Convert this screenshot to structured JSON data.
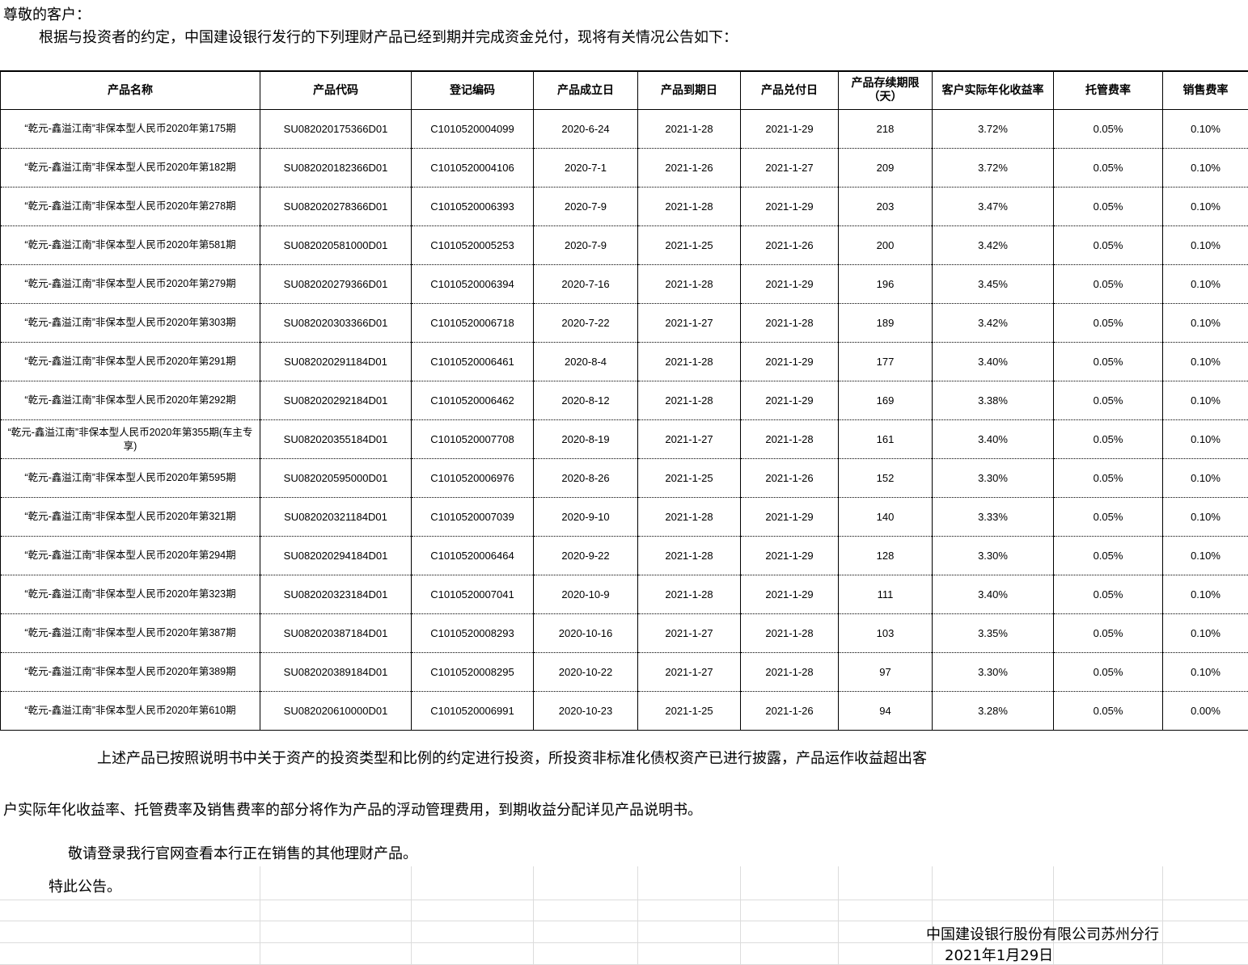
{
  "greeting": "尊敬的客户：",
  "intro": "根据与投资者的约定，中国建设银行发行的下列理财产品已经到期并完成资金兑付，现将有关情况公告如下：",
  "table": {
    "headers": [
      "产品名称",
      "产品代码",
      "登记编码",
      "产品成立日",
      "产品到期日",
      "产品兑付日",
      "产品存续期限（天）",
      "客户实际年化收益率",
      "托管费率",
      "销售费率"
    ],
    "rows": [
      [
        "“乾元-鑫溢江南”非保本型人民币2020年第175期",
        "SU082020175366D01",
        "C1010520004099",
        "2020-6-24",
        "2021-1-28",
        "2021-1-29",
        "218",
        "3.72%",
        "0.05%",
        "0.10%"
      ],
      [
        "“乾元-鑫溢江南”非保本型人民币2020年第182期",
        "SU082020182366D01",
        "C1010520004106",
        "2020-7-1",
        "2021-1-26",
        "2021-1-27",
        "209",
        "3.72%",
        "0.05%",
        "0.10%"
      ],
      [
        "“乾元-鑫溢江南”非保本型人民币2020年第278期",
        "SU082020278366D01",
        "C1010520006393",
        "2020-7-9",
        "2021-1-28",
        "2021-1-29",
        "203",
        "3.47%",
        "0.05%",
        "0.10%"
      ],
      [
        "“乾元-鑫溢江南”非保本型人民币2020年第581期",
        "SU082020581000D01",
        "C1010520005253",
        "2020-7-9",
        "2021-1-25",
        "2021-1-26",
        "200",
        "3.42%",
        "0.05%",
        "0.10%"
      ],
      [
        "“乾元-鑫溢江南”非保本型人民币2020年第279期",
        "SU082020279366D01",
        "C1010520006394",
        "2020-7-16",
        "2021-1-28",
        "2021-1-29",
        "196",
        "3.45%",
        "0.05%",
        "0.10%"
      ],
      [
        "“乾元-鑫溢江南”非保本型人民币2020年第303期",
        "SU082020303366D01",
        "C1010520006718",
        "2020-7-22",
        "2021-1-27",
        "2021-1-28",
        "189",
        "3.42%",
        "0.05%",
        "0.10%"
      ],
      [
        "“乾元-鑫溢江南”非保本型人民币2020年第291期",
        "SU082020291184D01",
        "C1010520006461",
        "2020-8-4",
        "2021-1-28",
        "2021-1-29",
        "177",
        "3.40%",
        "0.05%",
        "0.10%"
      ],
      [
        "“乾元-鑫溢江南”非保本型人民币2020年第292期",
        "SU082020292184D01",
        "C1010520006462",
        "2020-8-12",
        "2021-1-28",
        "2021-1-29",
        "169",
        "3.38%",
        "0.05%",
        "0.10%"
      ],
      [
        "“乾元-鑫溢江南”非保本型人民币2020年第355期(车主专享)",
        "SU082020355184D01",
        "C1010520007708",
        "2020-8-19",
        "2021-1-27",
        "2021-1-28",
        "161",
        "3.40%",
        "0.05%",
        "0.10%"
      ],
      [
        "“乾元-鑫溢江南”非保本型人民币2020年第595期",
        "SU082020595000D01",
        "C1010520006976",
        "2020-8-26",
        "2021-1-25",
        "2021-1-26",
        "152",
        "3.30%",
        "0.05%",
        "0.10%"
      ],
      [
        "“乾元-鑫溢江南”非保本型人民币2020年第321期",
        "SU082020321184D01",
        "C1010520007039",
        "2020-9-10",
        "2021-1-28",
        "2021-1-29",
        "140",
        "3.33%",
        "0.05%",
        "0.10%"
      ],
      [
        "“乾元-鑫溢江南”非保本型人民币2020年第294期",
        "SU082020294184D01",
        "C1010520006464",
        "2020-9-22",
        "2021-1-28",
        "2021-1-29",
        "128",
        "3.30%",
        "0.05%",
        "0.10%"
      ],
      [
        "“乾元-鑫溢江南”非保本型人民币2020年第323期",
        "SU082020323184D01",
        "C1010520007041",
        "2020-10-9",
        "2021-1-28",
        "2021-1-29",
        "111",
        "3.40%",
        "0.05%",
        "0.10%"
      ],
      [
        "“乾元-鑫溢江南”非保本型人民币2020年第387期",
        "SU082020387184D01",
        "C1010520008293",
        "2020-10-16",
        "2021-1-27",
        "2021-1-28",
        "103",
        "3.35%",
        "0.05%",
        "0.10%"
      ],
      [
        "“乾元-鑫溢江南”非保本型人民币2020年第389期",
        "SU082020389184D01",
        "C1010520008295",
        "2020-10-22",
        "2021-1-27",
        "2021-1-28",
        "97",
        "3.30%",
        "0.05%",
        "0.10%"
      ],
      [
        "“乾元-鑫溢江南”非保本型人民币2020年第610期",
        "SU082020610000D01",
        "C1010520006991",
        "2020-10-23",
        "2021-1-25",
        "2021-1-26",
        "94",
        "3.28%",
        "0.05%",
        "0.00%"
      ]
    ]
  },
  "para1": "上述产品已按照说明书中关于资产的投资类型和比例的约定进行投资，所投资非标准化债权资产已进行披露，产品运作收益超出客",
  "para2": "户实际年化收益率、托管费率及销售费率的部分将作为产品的浮动管理费用，到期收益分配详见产品说明书。",
  "para3": "敬请登录我行官网查看本行正在销售的其他理财产品。",
  "para4": "特此公告。",
  "signature": "中国建设银行股份有限公司苏州分行",
  "date": "2021年1月29日"
}
